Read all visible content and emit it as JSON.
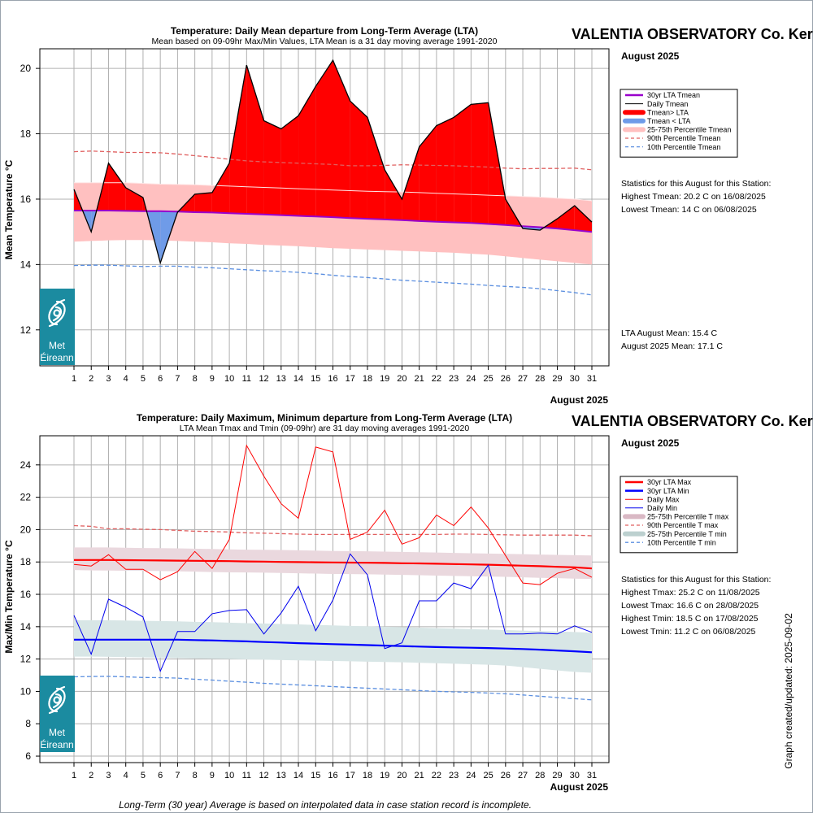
{
  "colors": {
    "above": "#ff0000",
    "below": "#6f9be8",
    "lta_mean": "#9900cc",
    "band_mean": "#ffc0c0",
    "p90": "#e06060",
    "p10": "#5b8fe0",
    "lta_max": "#ff0000",
    "lta_min": "#0000ff",
    "band_max": "#ead8de",
    "band_min": "#d8e6e6",
    "logo": "#1b8ba0",
    "grid": "#b0b0b0"
  },
  "top": {
    "title": "Temperature: Daily Mean departure from Long-Term Average (LTA)",
    "subtitle": "Mean based on 09-09hr Max/Min Values, LTA Mean is a 31 day moving average 1991-2020",
    "station": "VALENTIA OBSERVATORY Co. Kerry",
    "month": "August 2025",
    "month_axis": "August 2025",
    "ylabel": "Mean Temperature °C",
    "legend": [
      {
        "label": "30yr LTA Tmean",
        "icon": "line-purple"
      },
      {
        "label": "Daily Tmean",
        "icon": "line-black"
      },
      {
        "label": "Tmean> LTA",
        "icon": "thick-red"
      },
      {
        "label": "Tmean < LTA",
        "icon": "thick-blue"
      },
      {
        "label": "25-75th Percentile Tmean",
        "icon": "band-pink"
      },
      {
        "label": "90th Percentile Tmean",
        "icon": "dash-red"
      },
      {
        "label": "10th Percentile Tmean",
        "icon": "dash-blue"
      }
    ],
    "stats_heading": "Statistics for this August for this Station:",
    "stats": [
      "Highest Tmean: 20.2 C on 16/08/2025",
      "Lowest Tmean: 14 C on 06/08/2025"
    ],
    "lta_month_mean": "LTA August Mean: 15.4 C",
    "month_mean": "August 2025 Mean: 17.1 C",
    "logo": {
      "line1": "Met",
      "line2": "Éireann",
      "icon": "met-eireann-swirl-icon"
    }
  },
  "bottom": {
    "title": "Temperature: Daily Maximum, Minimum departure from Long-Term Average (LTA)",
    "subtitle": "LTA Mean Tmax and Tmin (09-09hr) are 31 day moving averages 1991-2020",
    "station": "VALENTIA OBSERVATORY Co. Kerry",
    "month": "August 2025",
    "month_axis": "August 2025",
    "ylabel": "Max/Min Temperature °C",
    "legend": [
      {
        "label": "30yr LTA Max",
        "icon": "thick-red-line"
      },
      {
        "label": "30yr LTA Min",
        "icon": "thick-blue-line"
      },
      {
        "label": "Daily Max",
        "icon": "thin-red"
      },
      {
        "label": "Daily Min",
        "icon": "thin-blue"
      },
      {
        "label": "25-75th Percentile T max",
        "icon": "band-max"
      },
      {
        "label": "90th Percentile T max",
        "icon": "dash-red"
      },
      {
        "label": "25-75th Percentile T min",
        "icon": "band-min"
      },
      {
        "label": "10th Percentile T min",
        "icon": "dash-blue"
      }
    ],
    "stats_heading": "Statistics for this August for this Station:",
    "stats": [
      "Highest Tmax: 25.2 C on 11/08/2025",
      "Lowest Tmax: 16.6 C on 28/08/2025",
      "Highest Tmin: 18.5 C on 17/08/2025",
      "Lowest Tmin: 11.2 C on 06/08/2025"
    ],
    "logo": {
      "line1": "Met",
      "line2": "Éireann",
      "icon": "met-eireann-swirl-icon"
    }
  },
  "footer": "Long-Term (30 year) Average is based on interpolated data in case station record is incomplete.",
  "created": "Graph created/updated:  2025-09-02",
  "chart_data": [
    {
      "type": "area",
      "title": "Temperature: Daily Mean departure from Long-Term Average (LTA)",
      "xlabel": "August 2025",
      "ylabel": "Mean Temperature °C",
      "xlim": [
        1,
        31
      ],
      "ylim": [
        10.9,
        20.6
      ],
      "yticks": [
        12,
        14,
        16,
        18,
        20
      ],
      "grid": true,
      "legend_position": "right",
      "x": [
        1,
        2,
        3,
        4,
        5,
        6,
        7,
        8,
        9,
        10,
        11,
        12,
        13,
        14,
        15,
        16,
        17,
        18,
        19,
        20,
        21,
        22,
        23,
        24,
        25,
        26,
        27,
        28,
        29,
        30,
        31
      ],
      "series": [
        {
          "name": "Daily Tmean",
          "values": [
            16.3,
            15.0,
            17.1,
            16.35,
            16.05,
            14.05,
            15.6,
            16.15,
            16.2,
            17.1,
            20.1,
            18.4,
            18.15,
            18.55,
            19.45,
            20.25,
            19.0,
            18.5,
            16.9,
            16.0,
            17.6,
            18.25,
            18.5,
            18.9,
            18.95,
            16.0,
            15.1,
            15.05,
            15.4,
            15.8,
            15.3
          ]
        },
        {
          "name": "30yr LTA Tmean",
          "values": [
            15.65,
            15.65,
            15.65,
            15.64,
            15.63,
            15.63,
            15.62,
            15.6,
            15.59,
            15.57,
            15.55,
            15.53,
            15.51,
            15.49,
            15.47,
            15.45,
            15.42,
            15.4,
            15.38,
            15.36,
            15.33,
            15.31,
            15.29,
            15.27,
            15.24,
            15.21,
            15.17,
            15.14,
            15.1,
            15.05,
            15.0
          ]
        },
        {
          "name": "90th Percentile Tmean",
          "values": [
            17.45,
            17.47,
            17.45,
            17.43,
            17.43,
            17.42,
            17.38,
            17.33,
            17.28,
            17.22,
            17.17,
            17.14,
            17.12,
            17.1,
            17.08,
            17.06,
            17.02,
            17.02,
            17.03,
            17.05,
            17.04,
            17.03,
            17.02,
            17.0,
            16.98,
            16.95,
            16.93,
            16.94,
            16.94,
            16.95,
            16.9
          ]
        },
        {
          "name": "10th Percentile Tmean",
          "values": [
            13.97,
            13.98,
            13.98,
            13.96,
            13.94,
            13.95,
            13.95,
            13.92,
            13.9,
            13.87,
            13.84,
            13.81,
            13.79,
            13.76,
            13.72,
            13.67,
            13.63,
            13.6,
            13.56,
            13.52,
            13.49,
            13.46,
            13.43,
            13.4,
            13.36,
            13.33,
            13.3,
            13.26,
            13.2,
            13.14,
            13.07
          ]
        },
        {
          "name": "25-75th Percentile Tmean",
          "upper": [
            16.5,
            16.5,
            16.5,
            16.5,
            16.48,
            16.46,
            16.45,
            16.44,
            16.42,
            16.4,
            16.38,
            16.36,
            16.34,
            16.32,
            16.3,
            16.28,
            16.26,
            16.24,
            16.23,
            16.22,
            16.2,
            16.18,
            16.16,
            16.14,
            16.12,
            16.1,
            16.08,
            16.06,
            16.03,
            16.0,
            15.95
          ],
          "lower": [
            14.7,
            14.72,
            14.74,
            14.75,
            14.75,
            14.74,
            14.72,
            14.7,
            14.68,
            14.65,
            14.63,
            14.6,
            14.58,
            14.56,
            14.53,
            14.5,
            14.48,
            14.46,
            14.44,
            14.42,
            14.4,
            14.38,
            14.36,
            14.33,
            14.3,
            14.25,
            14.2,
            14.15,
            14.1,
            14.05,
            14.0
          ]
        }
      ]
    },
    {
      "type": "line",
      "title": "Temperature: Daily Maximum, Minimum departure from Long-Term Average (LTA)",
      "xlabel": "August 2025",
      "ylabel": "Max/Min Temperature °C",
      "xlim": [
        1,
        31
      ],
      "ylim": [
        5.6,
        25.8
      ],
      "yticks": [
        6,
        8,
        10,
        12,
        14,
        16,
        18,
        20,
        22,
        24
      ],
      "grid": true,
      "legend_position": "right",
      "x": [
        1,
        2,
        3,
        4,
        5,
        6,
        7,
        8,
        9,
        10,
        11,
        12,
        13,
        14,
        15,
        16,
        17,
        18,
        19,
        20,
        21,
        22,
        23,
        24,
        25,
        26,
        27,
        28,
        29,
        30,
        31
      ],
      "series": [
        {
          "name": "Daily Max",
          "values": [
            17.85,
            17.75,
            18.45,
            17.55,
            17.55,
            16.9,
            17.4,
            18.65,
            17.6,
            19.4,
            25.2,
            23.3,
            21.6,
            20.7,
            25.1,
            24.8,
            19.4,
            19.85,
            21.2,
            19.1,
            19.5,
            20.9,
            20.25,
            21.4,
            20.1,
            18.4,
            16.7,
            16.6,
            17.3,
            17.6,
            17.05
          ]
        },
        {
          "name": "Daily Min",
          "values": [
            14.7,
            12.3,
            15.7,
            15.2,
            14.6,
            11.25,
            13.7,
            13.7,
            14.8,
            15.0,
            15.05,
            13.55,
            14.85,
            16.5,
            13.75,
            15.65,
            18.5,
            17.2,
            12.65,
            13.0,
            15.6,
            15.6,
            16.7,
            16.35,
            17.8,
            13.55,
            13.55,
            13.6,
            13.55,
            14.05,
            13.65
          ]
        },
        {
          "name": "30yr LTA Max",
          "values": [
            18.12,
            18.12,
            18.12,
            18.11,
            18.1,
            18.09,
            18.08,
            18.07,
            18.06,
            18.05,
            18.03,
            18.02,
            18.0,
            17.99,
            17.98,
            17.97,
            17.96,
            17.95,
            17.94,
            17.92,
            17.91,
            17.89,
            17.87,
            17.85,
            17.83,
            17.8,
            17.77,
            17.74,
            17.7,
            17.67,
            17.6
          ]
        },
        {
          "name": "30yr LTA Min",
          "values": [
            13.2,
            13.2,
            13.2,
            13.2,
            13.2,
            13.2,
            13.2,
            13.17,
            13.15,
            13.12,
            13.09,
            13.05,
            13.02,
            12.98,
            12.95,
            12.92,
            12.89,
            12.86,
            12.83,
            12.8,
            12.77,
            12.74,
            12.72,
            12.7,
            12.68,
            12.65,
            12.62,
            12.58,
            12.53,
            12.48,
            12.42
          ]
        },
        {
          "name": "90th Percentile T max",
          "values": [
            20.25,
            20.2,
            20.05,
            20.05,
            20.02,
            20.0,
            19.95,
            19.9,
            19.88,
            19.85,
            19.8,
            19.78,
            19.75,
            19.72,
            19.7,
            19.7,
            19.7,
            19.7,
            19.7,
            19.7,
            19.7,
            19.7,
            19.72,
            19.72,
            19.7,
            19.68,
            19.66,
            19.66,
            19.66,
            19.66,
            19.62
          ]
        },
        {
          "name": "10th Percentile T min",
          "values": [
            10.9,
            10.92,
            10.93,
            10.9,
            10.86,
            10.85,
            10.82,
            10.75,
            10.7,
            10.63,
            10.57,
            10.5,
            10.45,
            10.4,
            10.35,
            10.3,
            10.25,
            10.2,
            10.15,
            10.1,
            10.05,
            10.0,
            9.97,
            9.94,
            9.9,
            9.85,
            9.78,
            9.7,
            9.62,
            9.55,
            9.48
          ]
        },
        {
          "name": "25-75th Percentile T max",
          "upper": [
            18.9,
            18.9,
            18.9,
            18.88,
            18.86,
            18.85,
            18.84,
            18.82,
            18.8,
            18.78,
            18.76,
            18.75,
            18.74,
            18.72,
            18.7,
            18.68,
            18.67,
            18.66,
            18.64,
            18.62,
            18.6,
            18.58,
            18.56,
            18.54,
            18.52,
            18.5,
            18.48,
            18.46,
            18.44,
            18.42,
            18.4
          ],
          "lower": [
            17.5,
            17.48,
            17.47,
            17.46,
            17.45,
            17.44,
            17.42,
            17.4,
            17.38,
            17.36,
            17.35,
            17.34,
            17.32,
            17.3,
            17.28,
            17.26,
            17.25,
            17.24,
            17.22,
            17.2,
            17.18,
            17.16,
            17.14,
            17.12,
            17.1,
            17.08,
            17.05,
            17.02,
            17.0,
            16.97,
            16.95
          ]
        },
        {
          "name": "25-75th Percentile T min",
          "upper": [
            14.4,
            14.4,
            14.4,
            14.38,
            14.36,
            14.35,
            14.33,
            14.3,
            14.28,
            14.25,
            14.22,
            14.2,
            14.17,
            14.14,
            14.11,
            14.08,
            14.05,
            14.02,
            14.0,
            13.97,
            13.94,
            13.91,
            13.88,
            13.85,
            13.82,
            13.79,
            13.76,
            13.73,
            13.7,
            13.67,
            13.63
          ],
          "lower": [
            12.15,
            12.15,
            12.14,
            12.12,
            12.1,
            12.08,
            12.06,
            12.04,
            12.02,
            12.0,
            11.98,
            11.96,
            11.94,
            11.92,
            11.9,
            11.88,
            11.86,
            11.84,
            11.82,
            11.8,
            11.77,
            11.74,
            11.71,
            11.68,
            11.65,
            11.6,
            11.5,
            11.4,
            11.3,
            11.2,
            11.15
          ]
        }
      ]
    }
  ]
}
